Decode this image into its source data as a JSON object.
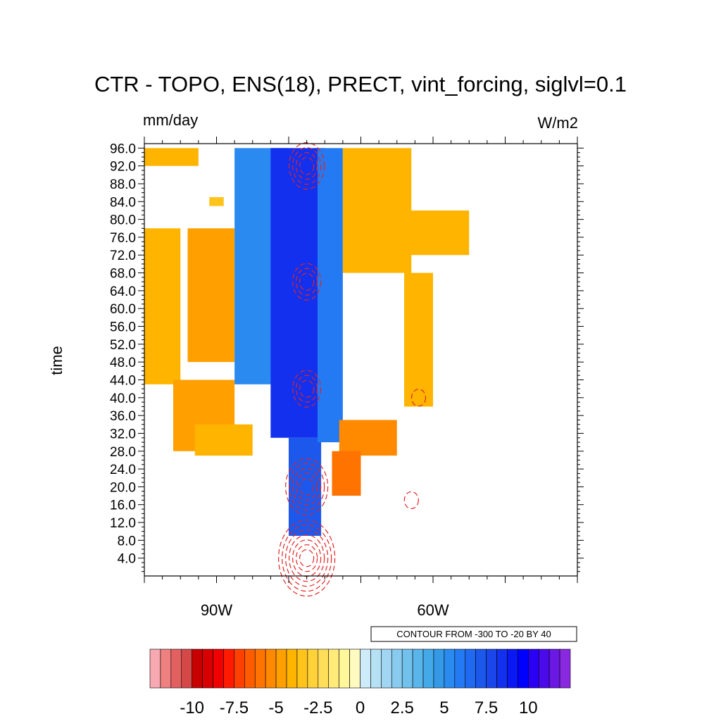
{
  "chart_data": {
    "type": "heatmap",
    "title": "CTR - TOPO, ENS(18), PRECT, vint_forcing, siglvl=0.1",
    "left_unit": "mm/day",
    "right_unit": "W/m2",
    "ylabel": "time",
    "xlabel": "",
    "xlim": [
      -100,
      -40
    ],
    "ylim": [
      0,
      97
    ],
    "y_ticks": [
      "4.0",
      "8.0",
      "12.0",
      "16.0",
      "20.0",
      "24.0",
      "28.0",
      "32.0",
      "36.0",
      "40.0",
      "44.0",
      "48.0",
      "52.0",
      "56.0",
      "60.0",
      "64.0",
      "68.0",
      "72.0",
      "76.0",
      "80.0",
      "84.0",
      "88.0",
      "92.0",
      "96.0"
    ],
    "x_ticks": [
      {
        "value": -90,
        "label": "90W"
      },
      {
        "value": -60,
        "label": "60W"
      }
    ],
    "contour_note": "CONTOUR FROM -300 TO -20 BY 40",
    "contour_levels": {
      "from": -300,
      "to": -20,
      "step": 40,
      "color": "#e52222"
    },
    "colorbar": {
      "tick_labels": [
        "-10",
        "-7.5",
        "-5",
        "-2.5",
        "0",
        "2.5",
        "5",
        "7.5",
        "10"
      ],
      "tick_values": [
        -10,
        -7.5,
        -5,
        -2.5,
        0,
        2.5,
        5,
        7.5,
        10
      ],
      "min": -12.5,
      "max": 12.5,
      "step": 0.625,
      "colors": [
        "#f7a8b0",
        "#ef8080",
        "#e36060",
        "#d54848",
        "#c80000",
        "#d80000",
        "#f00000",
        "#ff1a00",
        "#ff4000",
        "#ff5c00",
        "#ff7400",
        "#ff8a00",
        "#ffa000",
        "#ffb400",
        "#ffc41c",
        "#ffd23a",
        "#ffde5a",
        "#ffea7a",
        "#fff79a",
        "#fffbc0",
        "#cdebf8",
        "#b6e0f4",
        "#a0d6f2",
        "#88cbef",
        "#71c1ec",
        "#5ab5ea",
        "#44a9e8",
        "#349ae8",
        "#2a8af0",
        "#237af2",
        "#1f6af0",
        "#1c58ec",
        "#1a46ec",
        "#1230ee",
        "#0a18f4",
        "#0000ff",
        "#2a00f4",
        "#4a0aea",
        "#6a18e2",
        "#8a28e0"
      ]
    },
    "precip_anomaly_mm_day": [
      {
        "lon_from": -100,
        "lon_to": -92.5,
        "time_from": 92,
        "time_to": 96,
        "value": -4.0
      },
      {
        "lon_from": -94,
        "lon_to": -87.5,
        "time_from": 48,
        "time_to": 78,
        "value": -4.5
      },
      {
        "lon_from": -100,
        "lon_to": -95,
        "time_from": 43,
        "time_to": 78,
        "value": -4.3
      },
      {
        "lon_from": -96,
        "lon_to": -87.5,
        "time_from": 28,
        "time_to": 44,
        "value": -4.5
      },
      {
        "lon_from": -93,
        "lon_to": -85,
        "time_from": 27,
        "time_to": 34,
        "value": -4.2
      },
      {
        "lon_from": -91,
        "lon_to": -89,
        "time_from": 83,
        "time_to": 85,
        "value": -3.5
      },
      {
        "lon_from": -87.5,
        "lon_to": -80,
        "time_from": 43,
        "time_to": 96,
        "value": 5.5
      },
      {
        "lon_from": -82.5,
        "lon_to": -75,
        "time_from": 31,
        "time_to": 96,
        "value": 8.5
      },
      {
        "lon_from": -80,
        "lon_to": -75.5,
        "time_from": 9,
        "time_to": 31,
        "value": 7.0
      },
      {
        "lon_from": -76,
        "lon_to": -72.5,
        "time_from": 30,
        "time_to": 96,
        "value": 6.0
      },
      {
        "lon_from": -72.5,
        "lon_to": -63,
        "time_from": 68,
        "time_to": 96,
        "value": -4.2
      },
      {
        "lon_from": -64,
        "lon_to": -55,
        "time_from": 72,
        "time_to": 82,
        "value": -3.8
      },
      {
        "lon_from": -64,
        "lon_to": -60,
        "time_from": 38,
        "time_to": 68,
        "value": -4.0
      },
      {
        "lon_from": -73,
        "lon_to": -65,
        "time_from": 27,
        "time_to": 35,
        "value": -5.5
      },
      {
        "lon_from": -74,
        "lon_to": -70,
        "time_from": 18,
        "time_to": 28,
        "value": -6.0
      }
    ],
    "forcing_contours_w_m2": [
      {
        "lon": -77.5,
        "time": 92,
        "value": -140
      },
      {
        "lon": -77.5,
        "time": 66,
        "value": -100
      },
      {
        "lon": -77.5,
        "time": 42,
        "value": -100
      },
      {
        "lon": -77.5,
        "time": 20,
        "value": -180
      },
      {
        "lon": -77.5,
        "time": 4,
        "value": -260
      },
      {
        "lon": -62,
        "time": 40,
        "value": -20
      },
      {
        "lon": -63,
        "time": 17,
        "value": -20
      }
    ]
  }
}
